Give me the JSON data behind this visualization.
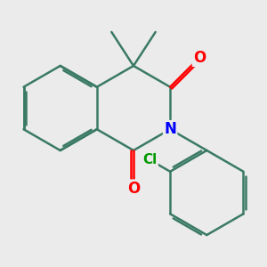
{
  "bg_color": "#ebebeb",
  "bond_color": "#3a7a65",
  "atom_colors": {
    "O": "#ff0000",
    "N": "#0000ff",
    "Cl": "#009900"
  },
  "bond_width": 1.8,
  "dbo": 0.055,
  "font_size": 11,
  "figsize": [
    3.0,
    3.0
  ],
  "dpi": 100
}
